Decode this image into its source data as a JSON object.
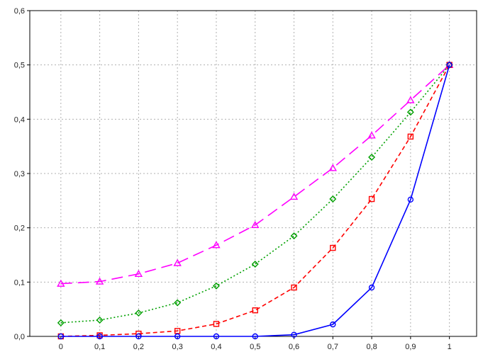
{
  "chart_data": {
    "type": "line",
    "title": "",
    "xlabel": "",
    "ylabel": "",
    "x": [
      0,
      0.1,
      0.2,
      0.3,
      0.4,
      0.5,
      0.6,
      0.7,
      0.8,
      0.9,
      1
    ],
    "xlim": [
      -0.08,
      1.07
    ],
    "ylim": [
      0,
      0.6
    ],
    "x_tick_labels": [
      "0",
      "0,1",
      "0,2",
      "0,3",
      "0,4",
      "0,5",
      "0,6",
      "0,7",
      "0,8",
      "0,9",
      "1"
    ],
    "y_ticks": [
      0,
      0.1,
      0.2,
      0.3,
      0.4,
      0.5,
      0.6
    ],
    "y_tick_labels": [
      "0,0",
      "0,1",
      "0,2",
      "0,3",
      "0,4",
      "0,5",
      "0,6"
    ],
    "grid": true,
    "series": [
      {
        "values": [
          0.097,
          0.101,
          0.115,
          0.135,
          0.168,
          0.205,
          0.257,
          0.31,
          0.37,
          0.435,
          0.5
        ],
        "color": "#ff00ff",
        "marker": "triangle",
        "dash": "long-dash"
      },
      {
        "values": [
          0.025,
          0.03,
          0.043,
          0.062,
          0.093,
          0.133,
          0.185,
          0.253,
          0.33,
          0.413,
          0.5
        ],
        "color": "#00a000",
        "marker": "diamond",
        "dash": "dotted"
      },
      {
        "values": [
          0.0,
          0.002,
          0.005,
          0.01,
          0.023,
          0.048,
          0.09,
          0.163,
          0.253,
          0.368,
          0.5
        ],
        "color": "#ff0000",
        "marker": "square",
        "dash": "dashed"
      },
      {
        "values": [
          0.0,
          0.0,
          0.0,
          0.0,
          0.0,
          0.0,
          0.003,
          0.022,
          0.09,
          0.252,
          0.5
        ],
        "color": "#0000ff",
        "marker": "circle",
        "dash": "solid"
      }
    ]
  }
}
